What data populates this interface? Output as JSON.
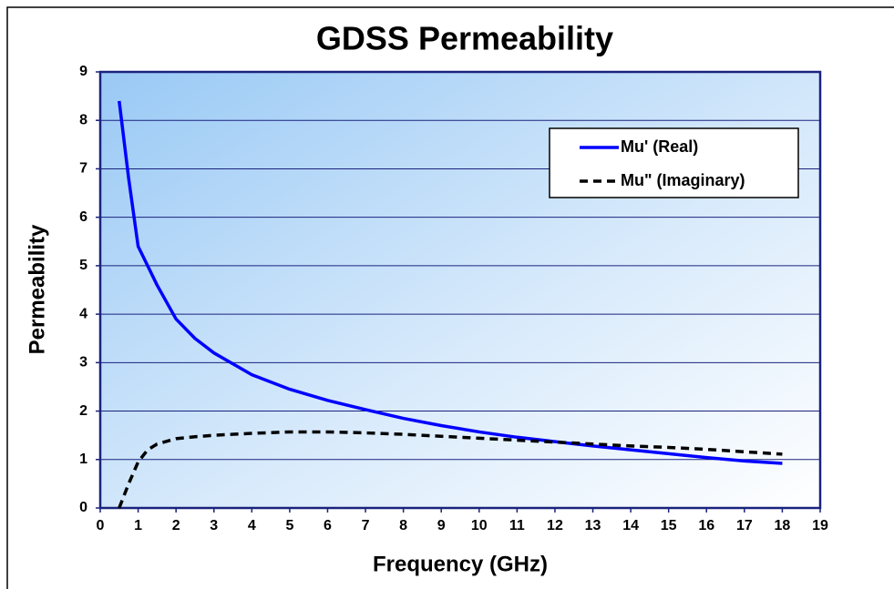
{
  "chart_data": {
    "type": "line",
    "title": "GDSS Permeability",
    "x_label": "Frequency (GHz)",
    "y_label": "Permeability",
    "x": [
      0.5,
      0.75,
      1,
      1.25,
      1.5,
      2,
      2.5,
      3,
      4,
      5,
      6,
      7,
      8,
      9,
      10,
      11,
      12,
      13,
      14,
      15,
      16,
      17,
      18
    ],
    "series": [
      {
        "name": "Mu' (Real)",
        "color": "#0000ff",
        "line_style": "solid",
        "values": [
          8.4,
          6.8,
          5.4,
          5.0,
          4.6,
          3.9,
          3.5,
          3.2,
          2.75,
          2.45,
          2.22,
          2.03,
          1.85,
          1.7,
          1.57,
          1.46,
          1.37,
          1.28,
          1.2,
          1.12,
          1.04,
          0.97,
          0.92
        ]
      },
      {
        "name": "Mu\" (Imaginary)",
        "color": "#000000",
        "line_style": "dashed",
        "values": [
          0,
          0.5,
          0.95,
          1.2,
          1.32,
          1.43,
          1.47,
          1.5,
          1.54,
          1.57,
          1.57,
          1.55,
          1.52,
          1.48,
          1.44,
          1.4,
          1.36,
          1.32,
          1.28,
          1.25,
          1.21,
          1.16,
          1.11
        ]
      }
    ],
    "xlim": [
      0,
      19
    ],
    "xticks": [
      0,
      1,
      2,
      3,
      4,
      5,
      6,
      7,
      8,
      9,
      10,
      11,
      12,
      13,
      14,
      15,
      16,
      17,
      18,
      19
    ],
    "ylim": [
      0,
      9
    ],
    "yticks": [
      0,
      1,
      2,
      3,
      4,
      5,
      6,
      7,
      8,
      9
    ],
    "grid": true,
    "legend": "upper right"
  }
}
